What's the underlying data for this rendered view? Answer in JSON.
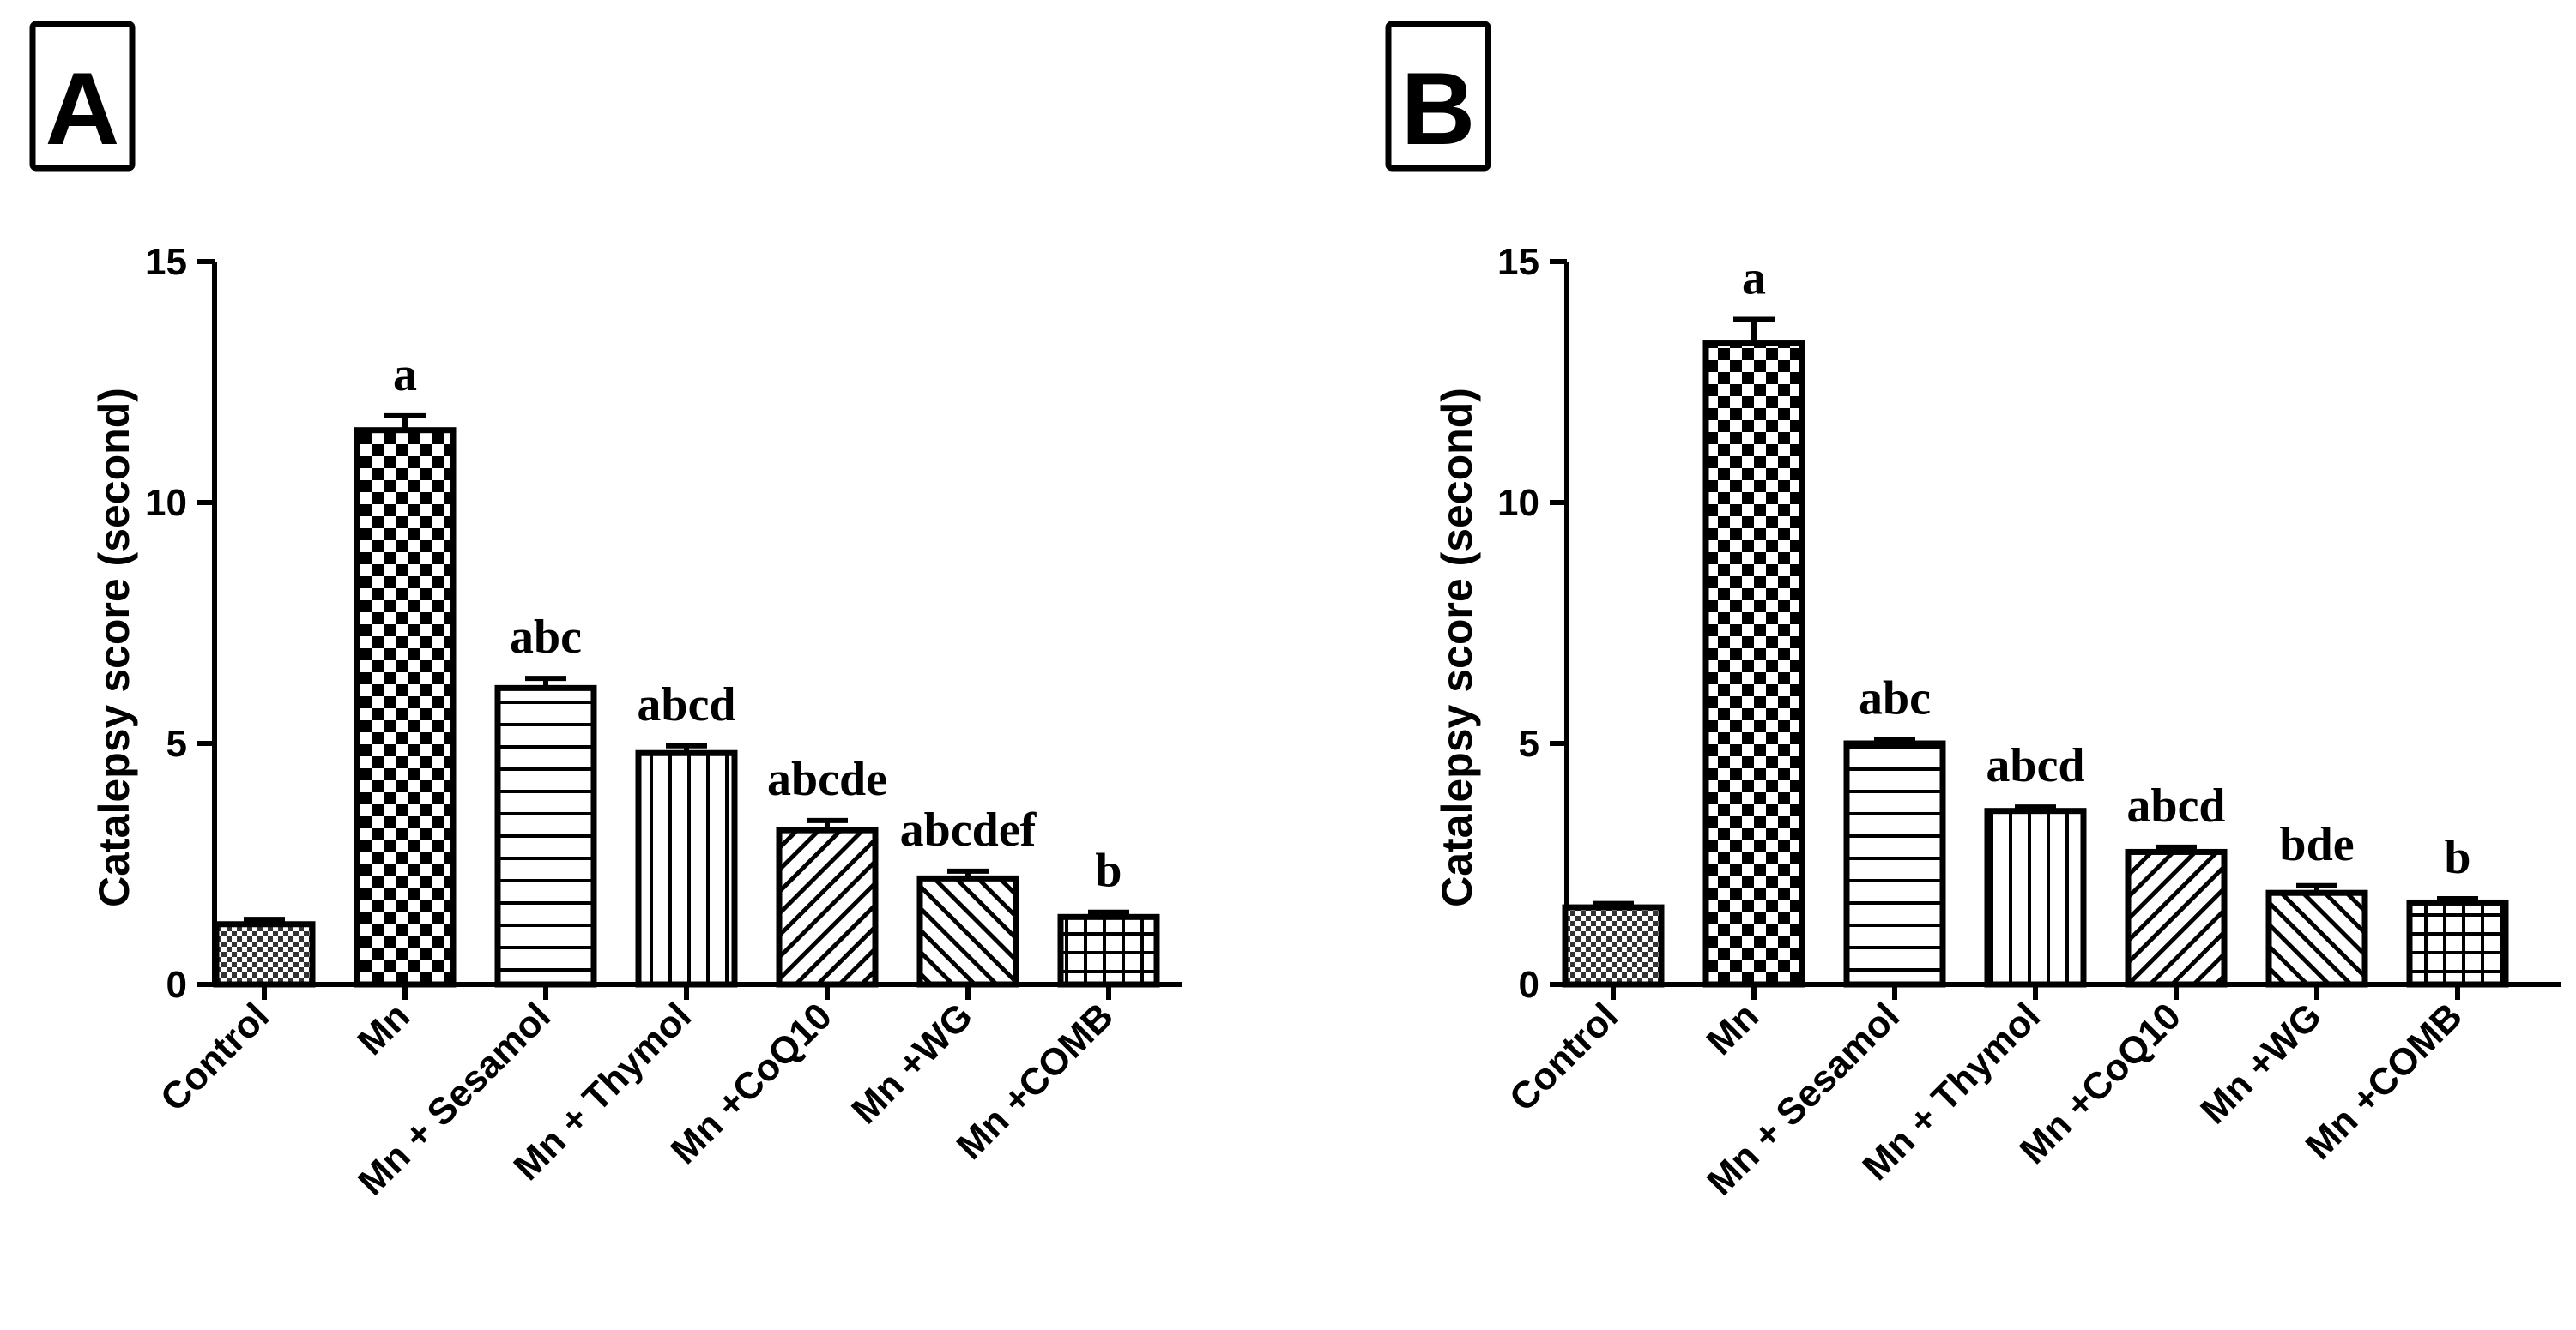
{
  "chart_data": [
    {
      "type": "bar",
      "panel": "A",
      "ylabel": "Catalepsy score (second)",
      "ylim": [
        0,
        15
      ],
      "yticks": [
        0,
        5,
        10,
        15
      ],
      "categories": [
        "Control",
        "Mn",
        "Mn + Sesamol",
        "Mn + Thymol",
        "Mn +CoQ10",
        "Mn +WG",
        "Mn +COMB"
      ],
      "values": [
        1.25,
        11.5,
        6.15,
        4.8,
        3.2,
        2.2,
        1.4
      ],
      "errors": [
        0.1,
        0.3,
        0.2,
        0.15,
        0.2,
        0.15,
        0.1
      ],
      "significance": [
        "",
        "a",
        "abc",
        "abcd",
        "abcde",
        "abcdef",
        "b"
      ],
      "patterns": [
        "crosshatch-fine",
        "checker",
        "horizontal",
        "vertical",
        "diag-right",
        "diag-left",
        "grid"
      ]
    },
    {
      "type": "bar",
      "panel": "B",
      "ylabel": "Catalepsy score (second)",
      "ylim": [
        0,
        15
      ],
      "yticks": [
        0,
        5,
        10,
        15
      ],
      "categories": [
        "Control",
        "Mn",
        "Mn + Sesamol",
        "Mn + Thymol",
        "Mn +CoQ10",
        "Mn +WG",
        "Mn +COMB"
      ],
      "values": [
        1.6,
        13.3,
        5.0,
        3.6,
        2.75,
        1.9,
        1.7
      ],
      "errors": [
        0.08,
        0.5,
        0.08,
        0.08,
        0.1,
        0.15,
        0.08
      ],
      "significance": [
        "",
        "a",
        "abc",
        "abcd",
        "abcd",
        "bde",
        "b"
      ],
      "patterns": [
        "crosshatch-fine",
        "checker",
        "horizontal",
        "vertical",
        "diag-right",
        "diag-left",
        "grid"
      ]
    }
  ]
}
